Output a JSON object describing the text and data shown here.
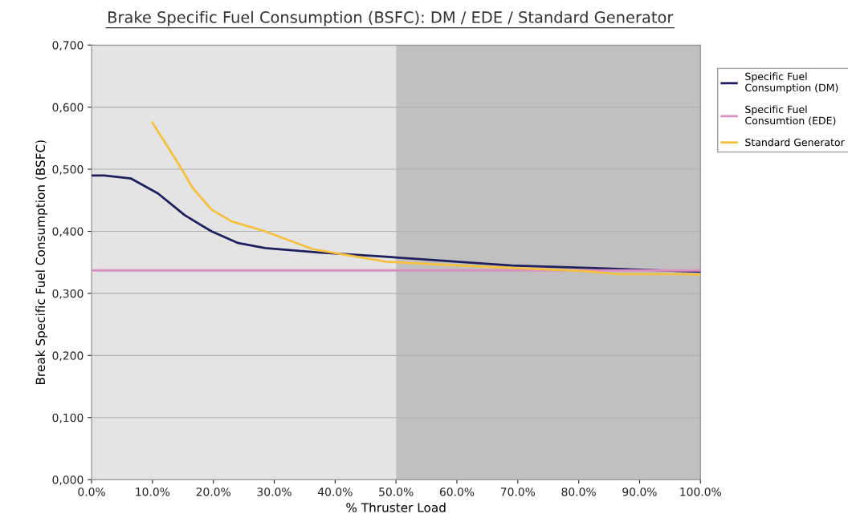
{
  "chart_data": {
    "type": "line",
    "title": "Brake Specific Fuel Consumption (BSFC): DM / EDE / Standard Generator",
    "xlabel": "% Thruster Load",
    "ylabel": "Break Specific Fuel Consumption (BSFC)",
    "series": [
      {
        "name": "Specific Fuel Consumption (DM)",
        "color": "#1f1f5e",
        "x": [
          0,
          2.1,
          6.5,
          10.9,
          15.3,
          19.7,
          24.1,
          28.5,
          37.3,
          48.3,
          69,
          97,
          100
        ],
        "values": [
          0.49,
          0.49,
          0.485,
          0.461,
          0.426,
          0.4,
          0.381,
          0.373,
          0.366,
          0.359,
          0.345,
          0.336,
          0.335
        ]
      },
      {
        "name": "Specific Fuel Consumtion (EDE)",
        "color": "#d98fc0",
        "x": [
          0,
          100
        ],
        "values": [
          0.337,
          0.337
        ]
      },
      {
        "name": "Standard Generator",
        "color": "#f5c040",
        "x": [
          10,
          14,
          16.6,
          19.7,
          23,
          28.5,
          36.4,
          48.3,
          64.5,
          81,
          86.5,
          97,
          100
        ],
        "values": [
          0.575,
          0.513,
          0.47,
          0.435,
          0.416,
          0.4,
          0.371,
          0.351,
          0.343,
          0.336,
          0.331,
          0.331,
          0.33
        ]
      }
    ],
    "xlim": [
      0,
      100
    ],
    "ylim": [
      0,
      0.7
    ],
    "xticks": [
      {
        "value": 0,
        "label": "0.0%"
      },
      {
        "value": 10,
        "label": "10.0%"
      },
      {
        "value": 20,
        "label": "20.0%"
      },
      {
        "value": 30,
        "label": "30.0%"
      },
      {
        "value": 40,
        "label": "40.0%"
      },
      {
        "value": 50,
        "label": "50.0%"
      },
      {
        "value": 60,
        "label": "60.0%"
      },
      {
        "value": 70,
        "label": "70.0%"
      },
      {
        "value": 80,
        "label": "80.0%"
      },
      {
        "value": 90,
        "label": "90.0%"
      },
      {
        "value": 100,
        "label": "100.0%"
      }
    ],
    "yticks": [
      {
        "value": 0,
        "label": "0,000"
      },
      {
        "value": 0.1,
        "label": "0,100"
      },
      {
        "value": 0.2,
        "label": "0,200"
      },
      {
        "value": 0.3,
        "label": "0,300"
      },
      {
        "value": 0.4,
        "label": "0,400"
      },
      {
        "value": 0.5,
        "label": "0,500"
      },
      {
        "value": 0.6,
        "label": "0,600"
      },
      {
        "value": 0.7,
        "label": "0,700"
      }
    ],
    "bands": [
      {
        "axis": "x",
        "from": 0,
        "to": 50,
        "color": "#e4e4e4"
      },
      {
        "axis": "x",
        "from": 50,
        "to": 100,
        "color": "#c0c0c0"
      }
    ],
    "grid": "y",
    "legend": "right",
    "marker": "none",
    "line_style": "solid"
  }
}
